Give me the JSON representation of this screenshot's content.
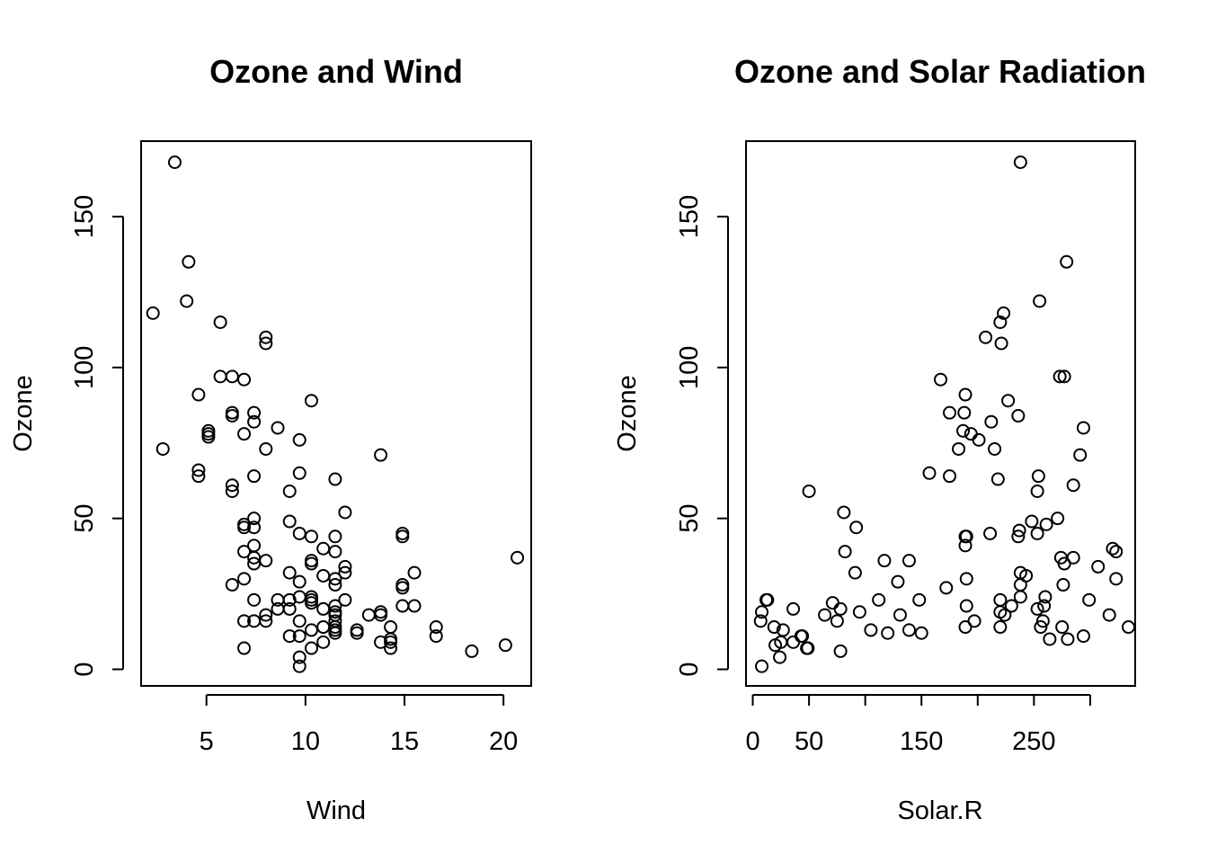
{
  "chart_data": [
    {
      "type": "scatter",
      "title": "Ozone and Wind",
      "xlabel": "Wind",
      "ylabel": "Ozone",
      "xlim": [
        1.7,
        21.4
      ],
      "ylim": [
        -5.5,
        175
      ],
      "xticks": [
        5,
        10,
        15,
        20
      ],
      "xtick_labels": [
        "5",
        "10",
        "15",
        "20"
      ],
      "yticks": [
        0,
        50,
        100,
        150
      ],
      "ytick_labels": [
        "0",
        "50",
        "100",
        "150"
      ],
      "grid": false,
      "points": [
        [
          3.4,
          168
        ],
        [
          4.1,
          135
        ],
        [
          4.0,
          122
        ],
        [
          2.3,
          118
        ],
        [
          5.7,
          115
        ],
        [
          8.0,
          110
        ],
        [
          8.0,
          108
        ],
        [
          5.7,
          97
        ],
        [
          6.3,
          97
        ],
        [
          6.9,
          96
        ],
        [
          4.6,
          91
        ],
        [
          10.3,
          89
        ],
        [
          6.3,
          85
        ],
        [
          7.4,
          85
        ],
        [
          6.3,
          84
        ],
        [
          7.4,
          82
        ],
        [
          8.6,
          80
        ],
        [
          5.1,
          79
        ],
        [
          5.1,
          78
        ],
        [
          6.9,
          78
        ],
        [
          5.1,
          77
        ],
        [
          9.7,
          76
        ],
        [
          2.8,
          73
        ],
        [
          8.0,
          73
        ],
        [
          13.8,
          71
        ],
        [
          4.6,
          66
        ],
        [
          9.7,
          65
        ],
        [
          4.6,
          64
        ],
        [
          7.4,
          64
        ],
        [
          11.5,
          63
        ],
        [
          6.3,
          61
        ],
        [
          6.3,
          59
        ],
        [
          9.2,
          59
        ],
        [
          12.0,
          52
        ],
        [
          7.4,
          50
        ],
        [
          9.2,
          49
        ],
        [
          6.9,
          48
        ],
        [
          6.9,
          47
        ],
        [
          7.4,
          47
        ],
        [
          9.7,
          45
        ],
        [
          14.9,
          45
        ],
        [
          10.3,
          44
        ],
        [
          11.5,
          44
        ],
        [
          14.9,
          44
        ],
        [
          7.4,
          41
        ],
        [
          10.9,
          40
        ],
        [
          11.5,
          39
        ],
        [
          6.9,
          39
        ],
        [
          20.7,
          37
        ],
        [
          7.4,
          37
        ],
        [
          8.0,
          36
        ],
        [
          10.3,
          36
        ],
        [
          7.4,
          35
        ],
        [
          10.3,
          35
        ],
        [
          12.0,
          34
        ],
        [
          9.2,
          32
        ],
        [
          12.0,
          32
        ],
        [
          15.5,
          32
        ],
        [
          10.9,
          31
        ],
        [
          6.9,
          30
        ],
        [
          11.5,
          30
        ],
        [
          9.7,
          29
        ],
        [
          11.5,
          28
        ],
        [
          6.3,
          28
        ],
        [
          14.9,
          28
        ],
        [
          14.9,
          27
        ],
        [
          10.3,
          24
        ],
        [
          9.7,
          24
        ],
        [
          7.4,
          23
        ],
        [
          8.6,
          23
        ],
        [
          9.2,
          23
        ],
        [
          10.3,
          23
        ],
        [
          12.0,
          23
        ],
        [
          10.3,
          22
        ],
        [
          11.5,
          21
        ],
        [
          14.9,
          21
        ],
        [
          15.5,
          21
        ],
        [
          10.9,
          20
        ],
        [
          8.6,
          20
        ],
        [
          9.2,
          20
        ],
        [
          11.5,
          19
        ],
        [
          13.8,
          19
        ],
        [
          13.8,
          18
        ],
        [
          8.0,
          18
        ],
        [
          11.5,
          18
        ],
        [
          13.2,
          18
        ],
        [
          6.9,
          16
        ],
        [
          7.4,
          16
        ],
        [
          8.0,
          16
        ],
        [
          9.7,
          16
        ],
        [
          11.5,
          16
        ],
        [
          10.9,
          14
        ],
        [
          11.5,
          14
        ],
        [
          14.3,
          14
        ],
        [
          16.6,
          14
        ],
        [
          11.5,
          13
        ],
        [
          10.3,
          13
        ],
        [
          12.6,
          13
        ],
        [
          11.5,
          12
        ],
        [
          12.6,
          12
        ],
        [
          9.2,
          11
        ],
        [
          9.7,
          11
        ],
        [
          16.6,
          11
        ],
        [
          14.3,
          10
        ],
        [
          10.9,
          9
        ],
        [
          13.8,
          9
        ],
        [
          14.3,
          9
        ],
        [
          20.1,
          8
        ],
        [
          6.9,
          7
        ],
        [
          10.3,
          7
        ],
        [
          14.3,
          7
        ],
        [
          18.4,
          6
        ],
        [
          9.7,
          4
        ],
        [
          9.7,
          1
        ]
      ]
    },
    {
      "type": "scatter",
      "title": "Ozone and Solar Radiation",
      "xlabel": "Solar.R",
      "ylabel": "Ozone",
      "xlim": [
        -6,
        340
      ],
      "ylim": [
        -5.5,
        175
      ],
      "xticks": [
        0,
        50,
        100,
        150,
        200,
        250,
        300
      ],
      "xtick_labels": [
        "0",
        "50",
        "",
        "150",
        "",
        "250",
        ""
      ],
      "yticks": [
        0,
        50,
        100,
        150
      ],
      "ytick_labels": [
        "0",
        "50",
        "100",
        "150"
      ],
      "grid": false,
      "points": [
        [
          238,
          168
        ],
        [
          279,
          135
        ],
        [
          255,
          122
        ],
        [
          223,
          118
        ],
        [
          220,
          115
        ],
        [
          207,
          110
        ],
        [
          221,
          108
        ],
        [
          273,
          97
        ],
        [
          277,
          97
        ],
        [
          167,
          96
        ],
        [
          189,
          91
        ],
        [
          227,
          89
        ],
        [
          175,
          85
        ],
        [
          188,
          85
        ],
        [
          236,
          84
        ],
        [
          212,
          82
        ],
        [
          294,
          80
        ],
        [
          187,
          79
        ],
        [
          194,
          78
        ],
        [
          201,
          76
        ],
        [
          183,
          73
        ],
        [
          215,
          73
        ],
        [
          291,
          71
        ],
        [
          157,
          65
        ],
        [
          175,
          64
        ],
        [
          254,
          64
        ],
        [
          218,
          63
        ],
        [
          285,
          61
        ],
        [
          50,
          59
        ],
        [
          253,
          59
        ],
        [
          81,
          52
        ],
        [
          271,
          50
        ],
        [
          248,
          49
        ],
        [
          261,
          48
        ],
        [
          92,
          47
        ],
        [
          237,
          46
        ],
        [
          211,
          45
        ],
        [
          253,
          45
        ],
        [
          189,
          44
        ],
        [
          236,
          44
        ],
        [
          190,
          44
        ],
        [
          189,
          41
        ],
        [
          320,
          40
        ],
        [
          82,
          39
        ],
        [
          323,
          39
        ],
        [
          274,
          37
        ],
        [
          285,
          37
        ],
        [
          117,
          36
        ],
        [
          139,
          36
        ],
        [
          277,
          35
        ],
        [
          307,
          34
        ],
        [
          243,
          31
        ],
        [
          238,
          32
        ],
        [
          91,
          32
        ],
        [
          190,
          30
        ],
        [
          323,
          30
        ],
        [
          129,
          29
        ],
        [
          238,
          28
        ],
        [
          276,
          28
        ],
        [
          172,
          27
        ],
        [
          260,
          24
        ],
        [
          238,
          24
        ],
        [
          12,
          23
        ],
        [
          13,
          23
        ],
        [
          112,
          23
        ],
        [
          220,
          23
        ],
        [
          148,
          23
        ],
        [
          299,
          23
        ],
        [
          71,
          22
        ],
        [
          190,
          21
        ],
        [
          259,
          21
        ],
        [
          230,
          21
        ],
        [
          253,
          20
        ],
        [
          78,
          20
        ],
        [
          36,
          20
        ],
        [
          95,
          19
        ],
        [
          220,
          19
        ],
        [
          8,
          19
        ],
        [
          64,
          18
        ],
        [
          317,
          18
        ],
        [
          224,
          18
        ],
        [
          131,
          18
        ],
        [
          44,
          11
        ],
        [
          75,
          16
        ],
        [
          7,
          16
        ],
        [
          197,
          16
        ],
        [
          258,
          16
        ],
        [
          19,
          14
        ],
        [
          189,
          14
        ],
        [
          275,
          14
        ],
        [
          334,
          14
        ],
        [
          256,
          14
        ],
        [
          220,
          14
        ],
        [
          105,
          13
        ],
        [
          27,
          13
        ],
        [
          139,
          13
        ],
        [
          120,
          12
        ],
        [
          150,
          12
        ],
        [
          280,
          10
        ],
        [
          25,
          9
        ],
        [
          36,
          9
        ],
        [
          294,
          11
        ],
        [
          43,
          11
        ],
        [
          20,
          8
        ],
        [
          24,
          4
        ],
        [
          49,
          7
        ],
        [
          48,
          7
        ],
        [
          78,
          6
        ],
        [
          264,
          10
        ],
        [
          8,
          1
        ]
      ]
    }
  ]
}
